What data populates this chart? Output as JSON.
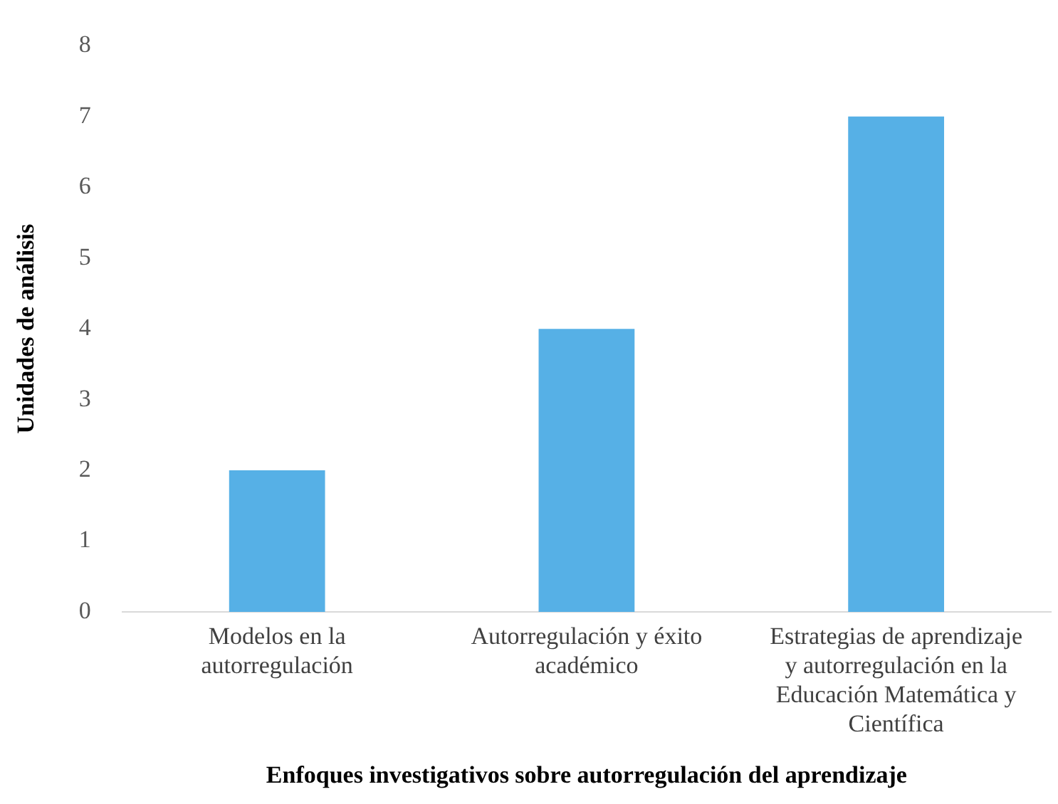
{
  "chart_data": {
    "type": "bar",
    "xlabel": "Enfoques investigativos sobre autorregulación del aprendizaje",
    "ylabel": "Unidades de análisis",
    "categories": [
      "Modelos en la autorregulación",
      "Autorregulación y éxito académico",
      "Estrategias de aprendizaje y autorregulación en la Educación Matemática y Científica"
    ],
    "values": [
      2,
      4,
      7
    ],
    "color": "#56b0e6",
    "ylim": [
      0,
      8
    ],
    "yticks": [
      0,
      1,
      2,
      3,
      4,
      5,
      6,
      7,
      8
    ],
    "grid": false,
    "legend": false
  }
}
